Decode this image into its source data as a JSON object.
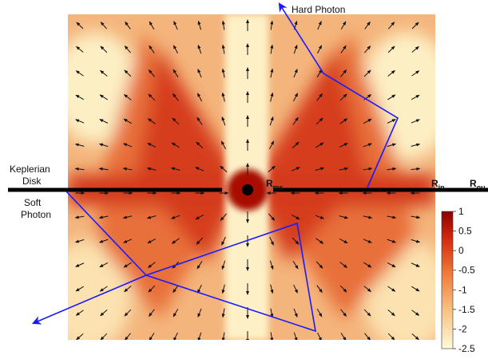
{
  "labels": {
    "hard_photon": "Hard Photon",
    "keplerian_disk": [
      "Keplerian",
      "Disk"
    ],
    "soft_photon": [
      "Soft",
      "Photon"
    ],
    "r_ms": {
      "main": "R",
      "sub": "ms"
    },
    "r_in": {
      "main": "R",
      "sub": "in"
    },
    "r_out": {
      "main": "R",
      "sub": "ou"
    }
  },
  "colorbar": {
    "lim": [
      -2.5,
      1
    ],
    "ticks": [
      1,
      0.5,
      0,
      -0.5,
      -1,
      -1.5,
      -2,
      -2.5
    ]
  }
}
